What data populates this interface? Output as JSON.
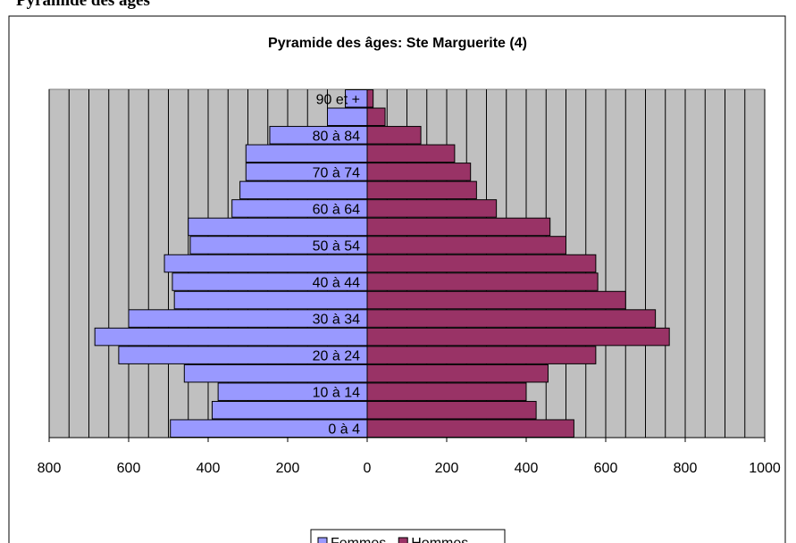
{
  "page_heading": "Pyramide des âges",
  "chart_data": {
    "type": "pyramid",
    "title": "Pyramide des âges: Ste Marguerite (4)",
    "categories": [
      "0 à 4",
      null,
      "10 à 14",
      null,
      "20 à 24",
      null,
      "30 à 34",
      null,
      "40 à 44",
      null,
      "50 à 54",
      null,
      "60 à 64",
      null,
      "70 à 74",
      null,
      "80 à 84",
      null,
      "90 et +"
    ],
    "series": [
      {
        "name": "Femmes",
        "color": "#9999FF",
        "values": [
          -495,
          -390,
          -375,
          -460,
          -625,
          -685,
          -600,
          -485,
          -490,
          -510,
          -445,
          -450,
          -340,
          -320,
          -305,
          -305,
          -245,
          -100,
          -55
        ]
      },
      {
        "name": "Hommes",
        "color": "#993366",
        "values": [
          520,
          425,
          400,
          455,
          575,
          760,
          725,
          650,
          580,
          575,
          500,
          460,
          325,
          275,
          260,
          220,
          135,
          45,
          15
        ]
      }
    ],
    "xlim": [
      -800,
      1000
    ],
    "xticks": [
      {
        "value": -800,
        "label": "800"
      },
      {
        "value": -600,
        "label": "600"
      },
      {
        "value": -400,
        "label": "400"
      },
      {
        "value": -200,
        "label": "200"
      },
      0,
      200,
      400,
      600,
      800,
      1000
    ],
    "xgrid": [
      -800,
      -750,
      -700,
      -650,
      -600,
      -550,
      -500,
      -450,
      -400,
      -350,
      -300,
      -250,
      -200,
      -150,
      -100,
      -50,
      0,
      50,
      100,
      150,
      200,
      250,
      300,
      350,
      400,
      450,
      500,
      550,
      600,
      650,
      700,
      750,
      800,
      850,
      900,
      950,
      1000
    ],
    "plot_background": "#C0C0C0",
    "legend": "bottom"
  }
}
